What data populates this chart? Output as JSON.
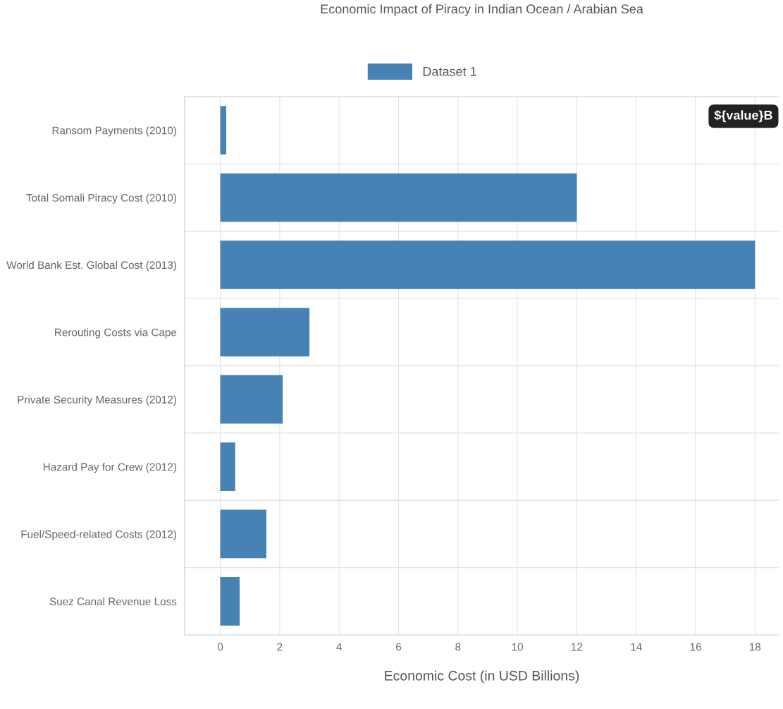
{
  "chart_data": {
    "type": "bar",
    "orientation": "horizontal",
    "title": "Economic Impact of Piracy in Indian Ocean / Arabian Sea",
    "xlabel": "Economic Cost (in USD Billions)",
    "categories": [
      "Ransom Payments (2010)",
      "Total Somali Piracy Cost (2010)",
      "World Bank Est. Global Cost (2013)",
      "Rerouting Costs via Cape",
      "Private Security Measures (2012)",
      "Hazard Pay for Crew (2012)",
      "Fuel/Speed-related Costs (2012)",
      "Suez Canal Revenue Loss"
    ],
    "series": [
      {
        "name": "Dataset 1",
        "color": "#4682b4",
        "values": [
          0.2,
          12,
          18,
          3,
          2.1,
          0.5,
          1.55,
          0.65
        ]
      }
    ],
    "xlim": [
      -1.2,
      18.8
    ],
    "xticks": [
      0,
      2,
      4,
      6,
      8,
      10,
      12,
      14,
      16,
      18
    ],
    "grid": true,
    "legend": "top",
    "annotations": [
      "${value}B"
    ]
  }
}
